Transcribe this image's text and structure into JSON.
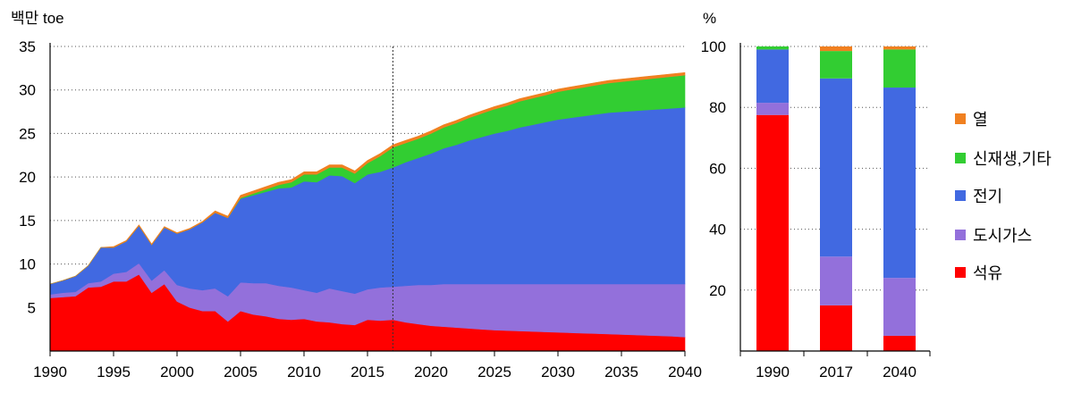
{
  "chart_data": [
    {
      "type": "area",
      "stacked": true,
      "ylabel": "백만 toe",
      "xlim": [
        1990,
        2040
      ],
      "ylim": [
        0,
        35
      ],
      "xticks": [
        "1990",
        "1995",
        "2000",
        "2005",
        "2010",
        "2015",
        "2020",
        "2025",
        "2030",
        "2035",
        "2040"
      ],
      "yticks": [
        "5",
        "10",
        "15",
        "20",
        "25",
        "30",
        "35"
      ],
      "grid": "horizontal-dotted",
      "vertical_marker_x": 2017,
      "x": [
        1990,
        1991,
        1992,
        1993,
        1994,
        1995,
        1996,
        1997,
        1998,
        1999,
        2000,
        2001,
        2002,
        2003,
        2004,
        2005,
        2006,
        2007,
        2008,
        2009,
        2010,
        2011,
        2012,
        2013,
        2014,
        2015,
        2016,
        2017,
        2018,
        2019,
        2020,
        2021,
        2022,
        2023,
        2024,
        2025,
        2026,
        2027,
        2028,
        2029,
        2030,
        2031,
        2032,
        2033,
        2034,
        2035,
        2036,
        2037,
        2038,
        2039,
        2040
      ],
      "series": [
        {
          "name": "석유",
          "color": "#ff0000",
          "values": [
            6.1,
            6.2,
            6.3,
            7.3,
            7.4,
            8.0,
            8.0,
            8.8,
            6.7,
            7.7,
            5.7,
            5.0,
            4.6,
            4.6,
            3.4,
            4.6,
            4.2,
            4.0,
            3.7,
            3.6,
            3.7,
            3.4,
            3.3,
            3.1,
            3.0,
            3.6,
            3.5,
            3.6,
            3.3,
            3.1,
            2.9,
            2.8,
            2.7,
            2.6,
            2.5,
            2.4,
            2.35,
            2.3,
            2.25,
            2.2,
            2.15,
            2.1,
            2.05,
            2.0,
            1.95,
            1.9,
            1.85,
            1.8,
            1.75,
            1.7,
            1.6
          ]
        },
        {
          "name": "도시가스",
          "color": "#9370db",
          "values": [
            0.4,
            0.5,
            0.5,
            0.5,
            0.6,
            0.9,
            1.1,
            1.3,
            1.4,
            1.6,
            1.9,
            2.2,
            2.4,
            2.6,
            2.9,
            3.3,
            3.6,
            3.8,
            3.8,
            3.7,
            3.3,
            3.3,
            3.9,
            3.8,
            3.6,
            3.5,
            3.8,
            3.8,
            4.2,
            4.5,
            4.7,
            4.9,
            5.0,
            5.1,
            5.2,
            5.3,
            5.35,
            5.4,
            5.45,
            5.5,
            5.55,
            5.6,
            5.65,
            5.7,
            5.75,
            5.8,
            5.85,
            5.9,
            5.95,
            6.0,
            6.1
          ]
        },
        {
          "name": "전기",
          "color": "#4169e1",
          "values": [
            1.2,
            1.4,
            1.8,
            2.0,
            3.9,
            3.0,
            3.5,
            4.3,
            4.1,
            4.9,
            5.9,
            6.8,
            7.8,
            8.7,
            9.0,
            9.6,
            10.1,
            10.5,
            11.2,
            11.5,
            12.5,
            12.7,
            13.0,
            13.2,
            12.7,
            13.2,
            13.3,
            13.7,
            14.2,
            14.6,
            15.1,
            15.6,
            16.0,
            16.5,
            16.9,
            17.3,
            17.6,
            18.0,
            18.3,
            18.6,
            18.9,
            19.1,
            19.3,
            19.5,
            19.7,
            19.8,
            19.9,
            20.0,
            20.1,
            20.2,
            20.3
          ]
        },
        {
          "name": "신재생,기타",
          "color": "#32cd32",
          "values": [
            0,
            0,
            0,
            0,
            0,
            0,
            0,
            0,
            0,
            0,
            0,
            0,
            0,
            0,
            0,
            0.1,
            0.2,
            0.3,
            0.4,
            0.6,
            0.8,
            0.9,
            0.9,
            1.0,
            1.1,
            1.3,
            1.8,
            2.3,
            2.2,
            2.2,
            2.3,
            2.4,
            2.5,
            2.6,
            2.7,
            2.8,
            2.9,
            3.0,
            3.05,
            3.1,
            3.2,
            3.25,
            3.3,
            3.35,
            3.4,
            3.45,
            3.5,
            3.55,
            3.6,
            3.65,
            3.7
          ]
        },
        {
          "name": "열",
          "color": "#f08020",
          "values": [
            0,
            0,
            0,
            0,
            0,
            0.1,
            0.1,
            0.1,
            0.1,
            0.1,
            0.1,
            0.1,
            0.1,
            0.2,
            0.2,
            0.3,
            0.3,
            0.3,
            0.3,
            0.3,
            0.3,
            0.3,
            0.3,
            0.3,
            0.3,
            0.3,
            0.3,
            0.3,
            0.3,
            0.3,
            0.3,
            0.3,
            0.3,
            0.3,
            0.3,
            0.3,
            0.3,
            0.3,
            0.3,
            0.3,
            0.3,
            0.3,
            0.3,
            0.3,
            0.3,
            0.3,
            0.3,
            0.3,
            0.3,
            0.3,
            0.3
          ]
        }
      ]
    },
    {
      "type": "bar",
      "stacked": true,
      "percent": true,
      "ylabel": "%",
      "ylim": [
        0,
        100
      ],
      "yticks": [
        "20",
        "40",
        "60",
        "80",
        "100"
      ],
      "grid": "horizontal-dotted",
      "categories": [
        "1990",
        "2017",
        "2040"
      ],
      "series": [
        {
          "name": "석유",
          "color": "#ff0000",
          "values": [
            77.5,
            15.0,
            5.0
          ]
        },
        {
          "name": "도시가스",
          "color": "#9370db",
          "values": [
            4.0,
            16.0,
            19.0
          ]
        },
        {
          "name": "전기",
          "color": "#4169e1",
          "values": [
            17.5,
            58.5,
            62.5
          ]
        },
        {
          "name": "신재생,기타",
          "color": "#32cd32",
          "values": [
            1.0,
            9.0,
            12.5
          ]
        },
        {
          "name": "열",
          "color": "#f08020",
          "values": [
            0,
            1.5,
            1.0
          ]
        }
      ]
    }
  ],
  "legend": {
    "placement": "right",
    "items": [
      {
        "label": "열",
        "color": "#f08020"
      },
      {
        "label": "신재생,기타",
        "color": "#32cd32"
      },
      {
        "label": "전기",
        "color": "#4169e1"
      },
      {
        "label": "도시가스",
        "color": "#9370db"
      },
      {
        "label": "석유",
        "color": "#ff0000"
      }
    ]
  }
}
